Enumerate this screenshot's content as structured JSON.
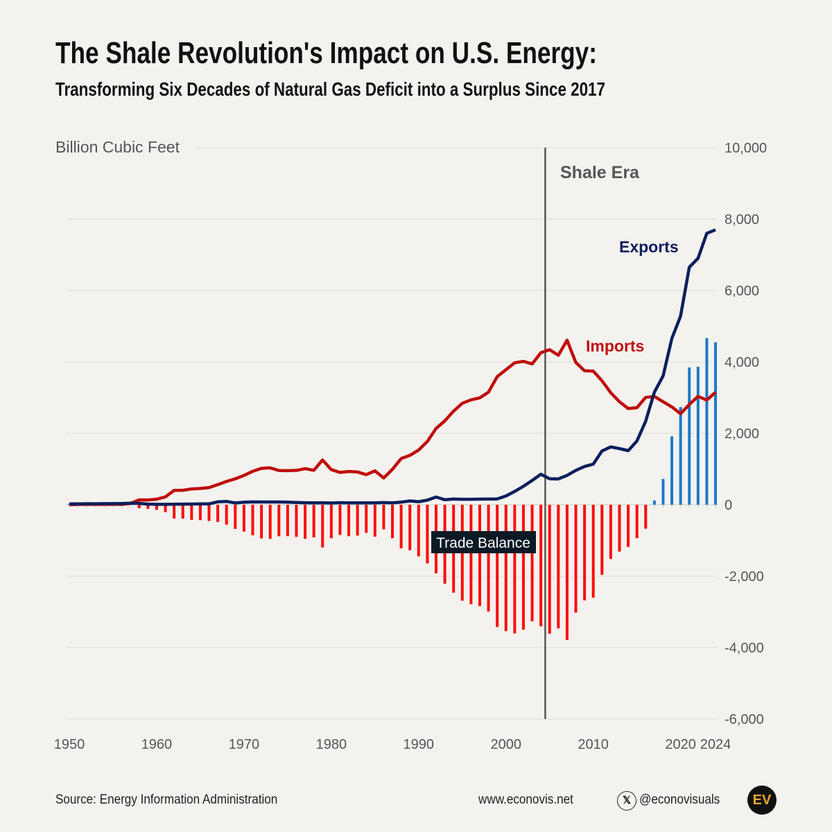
{
  "header": {
    "title": "The Shale Revolution's Impact on U.S. Energy:",
    "subtitle": "Transforming Six Decades of Natural Gas Deficit into a Surplus Since 2017"
  },
  "chart_data": {
    "type": "line",
    "ylabel": "Billion Cubic Feet",
    "xlim": [
      1950,
      2024
    ],
    "ylim": [
      -6000,
      10000
    ],
    "x_ticks": [
      "1950",
      "1960",
      "1970",
      "1980",
      "1990",
      "2000",
      "2010",
      "2020",
      "2024"
    ],
    "y_ticks": [
      "10,000",
      "8,000",
      "6,000",
      "4,000",
      "2,000",
      "0",
      "-2,000",
      "-4,000",
      "-6,000"
    ],
    "grid": true,
    "y_axis_side": "right",
    "annotations": {
      "shale_era": "Shale Era",
      "shale_era_year": 2004.5
    },
    "colors": {
      "exports": "#0d1f5c",
      "imports": "#c00d0d",
      "deficit": "#ff0a0a",
      "surplus": "#1a7ac9"
    },
    "years": [
      1950,
      1951,
      1952,
      1953,
      1954,
      1955,
      1956,
      1957,
      1958,
      1959,
      1960,
      1961,
      1962,
      1963,
      1964,
      1965,
      1966,
      1967,
      1968,
      1969,
      1970,
      1971,
      1972,
      1973,
      1974,
      1975,
      1976,
      1977,
      1978,
      1979,
      1980,
      1981,
      1982,
      1983,
      1984,
      1985,
      1986,
      1987,
      1988,
      1989,
      1990,
      1991,
      1992,
      1993,
      1994,
      1995,
      1996,
      1997,
      1998,
      1999,
      2000,
      2001,
      2002,
      2003,
      2004,
      2005,
      2006,
      2007,
      2008,
      2009,
      2010,
      2011,
      2012,
      2013,
      2014,
      2015,
      2016,
      2017,
      2018,
      2019,
      2020,
      2021,
      2022,
      2023,
      2024
    ],
    "series": [
      {
        "name": "Exports",
        "kind": "line",
        "values": [
          26,
          24,
          29,
          28,
          31,
          31,
          35,
          42,
          39,
          18,
          11,
          11,
          16,
          17,
          20,
          26,
          25,
          82,
          94,
          51,
          70,
          80,
          78,
          77,
          77,
          73,
          65,
          56,
          53,
          56,
          49,
          59,
          52,
          55,
          55,
          55,
          61,
          54,
          74,
          107,
          86,
          129,
          216,
          140,
          162,
          154,
          153,
          157,
          159,
          163,
          244,
          373,
          516,
          680,
          854,
          729,
          724,
          822,
          963,
          1072,
          1137,
          1506,
          1619,
          1572,
          1514,
          1784,
          2335,
          3152,
          3608,
          4656,
          5284,
          6653,
          6902,
          7600,
          7700
        ]
      },
      {
        "name": "Imports",
        "kind": "line",
        "values": [
          0,
          10,
          10,
          10,
          10,
          11,
          10,
          37,
          136,
          134,
          156,
          219,
          402,
          406,
          443,
          456,
          480,
          564,
          652,
          727,
          821,
          935,
          1019,
          1033,
          959,
          953,
          964,
          1011,
          966,
          1253,
          985,
          904,
          933,
          918,
          843,
          950,
          750,
          993,
          1294,
          1382,
          1532,
          1773,
          2138,
          2350,
          2624,
          2841,
          2937,
          2994,
          3152,
          3586,
          3782,
          3977,
          4015,
          3944,
          4259,
          4341,
          4186,
          4608,
          3984,
          3751,
          3741,
          3469,
          3138,
          2883,
          2695,
          2718,
          3006,
          3033,
          2885,
          2740,
          2550,
          2808,
          3035,
          2930,
          3150
        ]
      },
      {
        "name": "Trade Balance",
        "kind": "bar",
        "values": [
          26,
          14,
          19,
          18,
          21,
          20,
          25,
          5,
          -97,
          -116,
          -145,
          -208,
          -386,
          -389,
          -423,
          -430,
          -455,
          -482,
          -558,
          -676,
          -751,
          -855,
          -941,
          -956,
          -882,
          -880,
          -899,
          -955,
          -913,
          -1197,
          -936,
          -845,
          -881,
          -863,
          -788,
          -895,
          -689,
          -939,
          -1220,
          -1275,
          -1446,
          -1644,
          -1922,
          -2210,
          -2462,
          -2687,
          -2784,
          -2837,
          -2993,
          -3423,
          -3538,
          -3604,
          -3499,
          -3264,
          -3405,
          -3612,
          -3462,
          -3786,
          -3021,
          -2679,
          -2604,
          -1963,
          -1519,
          -1311,
          -1181,
          -934,
          -671,
          119,
          723,
          1916,
          2734,
          3845,
          3867,
          4670,
          4550
        ]
      }
    ]
  },
  "footer": {
    "source": "Source: Energy Information Administration",
    "website": "www.econovis.net",
    "x_logo": "𝕏",
    "handle": "@econovisuals",
    "logo_text": "EV"
  }
}
